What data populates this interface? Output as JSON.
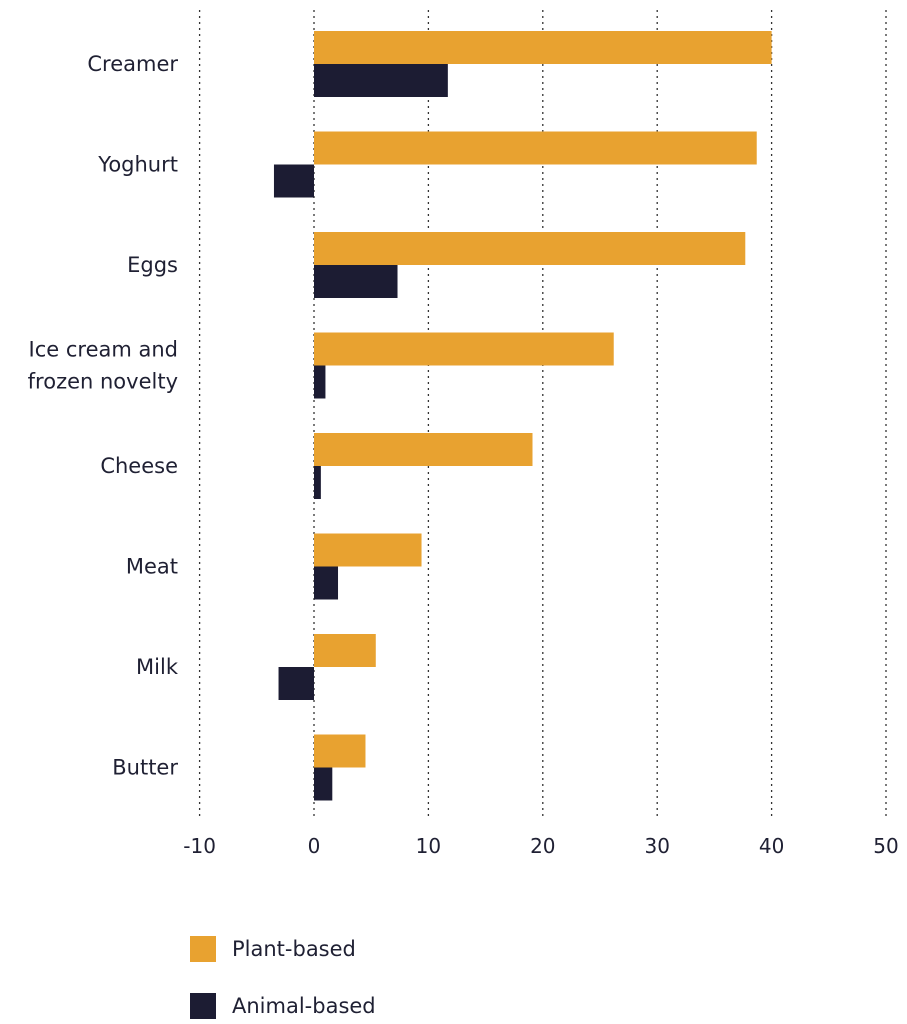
{
  "chart_data": {
    "type": "bar",
    "orientation": "horizontal",
    "categories": [
      [
        "Creamer"
      ],
      [
        "Yoghurt"
      ],
      [
        "Eggs"
      ],
      [
        "Ice cream and",
        "frozen novelty"
      ],
      [
        "Cheese"
      ],
      [
        "Meat"
      ],
      [
        "Milk"
      ],
      [
        "Butter"
      ]
    ],
    "series": [
      {
        "name": "Plant-based",
        "color": "#E8A230",
        "values": [
          40,
          38.7,
          37.7,
          26.2,
          19.1,
          9.4,
          5.4,
          4.5
        ]
      },
      {
        "name": "Animal-based",
        "color": "#1C1C33",
        "values": [
          11.7,
          -3.5,
          7.3,
          1.0,
          0.6,
          2.1,
          -3.1,
          1.6
        ]
      }
    ],
    "xlim": [
      -10,
      50
    ],
    "xticks": [
      -10,
      0,
      10,
      20,
      30,
      40,
      50
    ],
    "grid": true,
    "legend_position": "bottom-left",
    "title": "",
    "xlabel": "",
    "ylabel": ""
  }
}
